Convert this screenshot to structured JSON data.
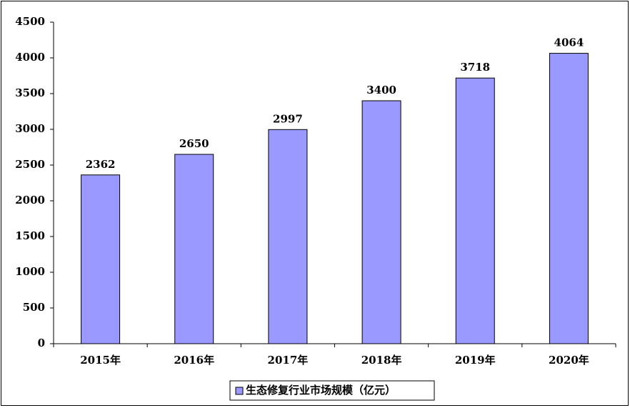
{
  "chart_data": {
    "type": "bar",
    "categories": [
      "2015年",
      "2016年",
      "2017年",
      "2018年",
      "2019年",
      "2020年"
    ],
    "series": [
      {
        "name": "生态修复行业市场规模（亿元）",
        "color": "#9999ff",
        "values": [
          2362,
          2650,
          2997,
          3400,
          3718,
          4064
        ]
      }
    ],
    "ylim": [
      0,
      4500
    ],
    "yticks": [
      0,
      500,
      1000,
      1500,
      2000,
      2500,
      3000,
      3500,
      4000,
      4500
    ],
    "grid": false,
    "legend": "bottom"
  }
}
